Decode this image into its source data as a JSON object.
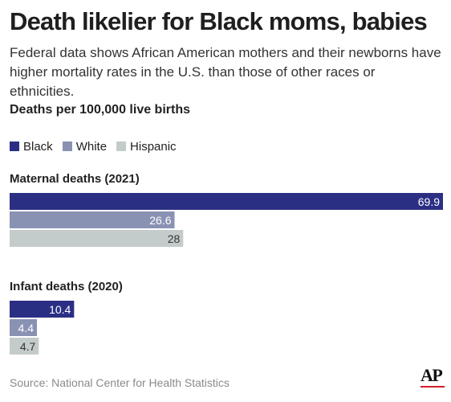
{
  "chart_data": {
    "type": "bar",
    "orientation": "horizontal",
    "title": "Death likelier for Black moms, babies",
    "subtitle": "Federal data shows African American mothers and their newborns have higher mortality rates in the U.S. than those of other races or ethnicities.",
    "unit_label": "Deaths per 100,000 live births",
    "legend_position": "top-left",
    "grid": false,
    "xlim": [
      0,
      69.9
    ],
    "categories": [
      "Maternal deaths (2021)",
      "Infant deaths (2020)"
    ],
    "series": [
      {
        "name": "Black",
        "color": "#2b2f84",
        "label_color": "#ffffff",
        "values": [
          69.9,
          10.4
        ]
      },
      {
        "name": "White",
        "color": "#8a92b3",
        "label_color": "#ffffff",
        "values": [
          26.6,
          4.4
        ]
      },
      {
        "name": "Hispanic",
        "color": "#c3cccb",
        "label_color": "#333333",
        "values": [
          28,
          4.7
        ]
      }
    ],
    "value_labels": [
      [
        "69.9",
        "10.4"
      ],
      [
        "26.6",
        "4.4"
      ],
      [
        "28",
        "4.7"
      ]
    ],
    "source": "Source: National Center for Health Statistics"
  },
  "logo": "AP"
}
